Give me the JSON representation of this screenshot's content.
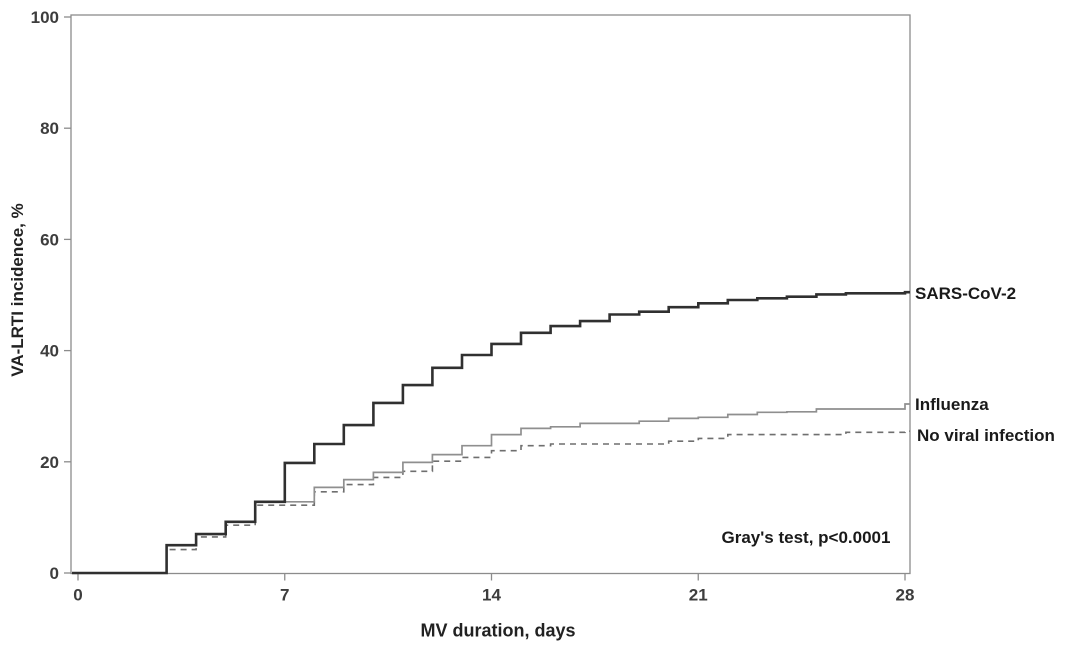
{
  "figure": {
    "background": "#ffffff",
    "frame_color": "#8c8c8c",
    "tick_label_color": "#3d3d3d",
    "text_color": "#1a1a1a"
  },
  "chart_data": {
    "type": "line",
    "subtype": "step-cumulative-incidence",
    "title": "",
    "xlabel": "MV duration, days",
    "ylabel": "VA-LRTI incidence, %",
    "xlim": [
      0,
      28
    ],
    "ylim": [
      0,
      100
    ],
    "x_ticks": [
      0,
      7,
      14,
      21,
      28
    ],
    "y_ticks": [
      0,
      20,
      40,
      60,
      80,
      100
    ],
    "grid": false,
    "legend_position": "right-of-curve-end-labels",
    "annotation": "Gray's test, p<0.0001",
    "series": [
      {
        "name": "No viral infection",
        "style": "dashed",
        "color": "#6f6f6f",
        "width": 1.6,
        "points": [
          [
            0,
            0
          ],
          [
            3,
            4.2
          ],
          [
            4,
            6.5
          ],
          [
            5,
            8.6
          ],
          [
            6,
            12.2
          ],
          [
            8,
            14.6
          ],
          [
            9,
            15.9
          ],
          [
            10,
            17.2
          ],
          [
            11,
            18.3
          ],
          [
            12,
            20.1
          ],
          [
            13,
            20.8
          ],
          [
            14,
            22.0
          ],
          [
            15,
            22.9
          ],
          [
            16,
            23.2
          ],
          [
            20,
            23.7
          ],
          [
            21,
            24.2
          ],
          [
            22,
            24.9
          ],
          [
            26,
            25.3
          ],
          [
            28,
            25.5
          ]
        ]
      },
      {
        "name": "Influenza",
        "style": "solid",
        "color": "#8f8f8f",
        "width": 1.7,
        "points": [
          [
            0,
            0
          ],
          [
            3,
            5.0
          ],
          [
            4,
            7.0
          ],
          [
            5,
            9.2
          ],
          [
            6,
            12.8
          ],
          [
            8,
            15.4
          ],
          [
            9,
            16.8
          ],
          [
            10,
            18.1
          ],
          [
            11,
            19.9
          ],
          [
            12,
            21.3
          ],
          [
            13,
            22.9
          ],
          [
            14,
            24.9
          ],
          [
            15,
            26.0
          ],
          [
            16,
            26.3
          ],
          [
            17,
            26.9
          ],
          [
            19,
            27.3
          ],
          [
            20,
            27.8
          ],
          [
            21,
            28.0
          ],
          [
            22,
            28.5
          ],
          [
            23,
            28.9
          ],
          [
            24,
            29.0
          ],
          [
            25,
            29.5
          ],
          [
            28,
            30.4
          ]
        ]
      },
      {
        "name": "SARS-CoV-2",
        "style": "solid-bold",
        "color": "#303030",
        "width": 2.6,
        "points": [
          [
            0,
            0
          ],
          [
            3,
            5.0
          ],
          [
            4,
            7.0
          ],
          [
            5,
            9.2
          ],
          [
            6,
            12.8
          ],
          [
            7,
            19.8
          ],
          [
            8,
            23.2
          ],
          [
            9,
            26.6
          ],
          [
            10,
            30.6
          ],
          [
            11,
            33.8
          ],
          [
            12,
            36.9
          ],
          [
            13,
            39.2
          ],
          [
            14,
            41.2
          ],
          [
            15,
            43.2
          ],
          [
            16,
            44.4
          ],
          [
            17,
            45.3
          ],
          [
            18,
            46.5
          ],
          [
            19,
            47.0
          ],
          [
            20,
            47.8
          ],
          [
            21,
            48.5
          ],
          [
            22,
            49.1
          ],
          [
            23,
            49.4
          ],
          [
            24,
            49.7
          ],
          [
            25,
            50.1
          ],
          [
            26,
            50.3
          ],
          [
            28,
            50.5
          ]
        ]
      }
    ]
  },
  "labels": {
    "sars": "SARS-CoV-2",
    "influenza": "Influenza",
    "no_viral": "No viral infection"
  }
}
